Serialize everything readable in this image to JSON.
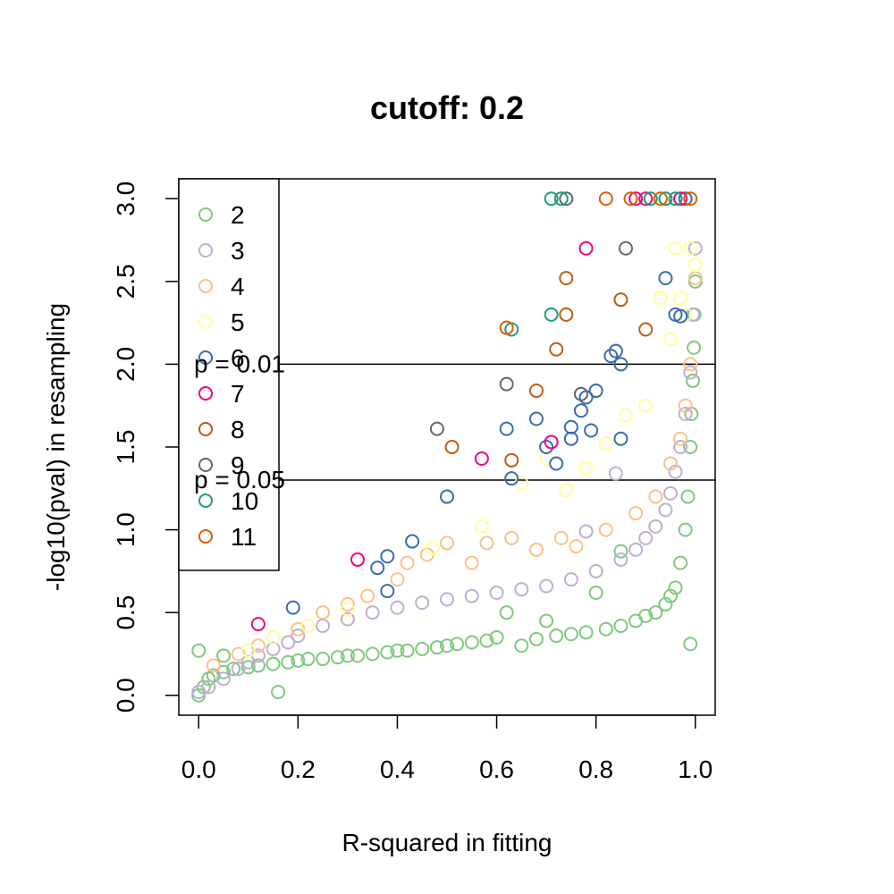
{
  "chart_data": {
    "type": "scatter",
    "title": "cutoff: 0.2",
    "xlabel": "R-squared in fitting",
    "ylabel": "-log10(pval) in resampling",
    "xlim": [
      -0.04,
      1.04
    ],
    "ylim": [
      -0.12,
      3.12
    ],
    "xticks": [
      "0.0",
      "0.2",
      "0.4",
      "0.6",
      "0.8",
      "1.0"
    ],
    "yticks": [
      "0.0",
      "0.5",
      "1.0",
      "1.5",
      "2.0",
      "2.5",
      "3.0"
    ],
    "legend_position": "top-left",
    "reference_lines": [
      {
        "y": 2.0,
        "label": "p = 0.01"
      },
      {
        "y": 1.3,
        "label": "p = 0.05"
      }
    ],
    "series": [
      {
        "name": "2",
        "color": "#7fc97f",
        "points": [
          [
            0.0,
            0.0
          ],
          [
            0.01,
            0.05
          ],
          [
            0.02,
            0.1
          ],
          [
            0.03,
            0.12
          ],
          [
            0.05,
            0.14
          ],
          [
            0.07,
            0.16
          ],
          [
            0.1,
            0.17
          ],
          [
            0.12,
            0.18
          ],
          [
            0.15,
            0.19
          ],
          [
            0.16,
            0.02
          ],
          [
            0.18,
            0.2
          ],
          [
            0.2,
            0.21
          ],
          [
            0.22,
            0.22
          ],
          [
            0.25,
            0.22
          ],
          [
            0.28,
            0.23
          ],
          [
            0.3,
            0.24
          ],
          [
            0.32,
            0.24
          ],
          [
            0.35,
            0.25
          ],
          [
            0.38,
            0.26
          ],
          [
            0.4,
            0.27
          ],
          [
            0.42,
            0.27
          ],
          [
            0.45,
            0.28
          ],
          [
            0.48,
            0.29
          ],
          [
            0.5,
            0.3
          ],
          [
            0.52,
            0.31
          ],
          [
            0.55,
            0.32
          ],
          [
            0.58,
            0.33
          ],
          [
            0.6,
            0.35
          ],
          [
            0.62,
            0.5
          ],
          [
            0.65,
            0.3
          ],
          [
            0.68,
            0.34
          ],
          [
            0.7,
            0.45
          ],
          [
            0.72,
            0.36
          ],
          [
            0.75,
            0.37
          ],
          [
            0.78,
            0.38
          ],
          [
            0.8,
            0.62
          ],
          [
            0.82,
            0.4
          ],
          [
            0.85,
            0.42
          ],
          [
            0.88,
            0.45
          ],
          [
            0.9,
            0.48
          ],
          [
            0.92,
            0.5
          ],
          [
            0.94,
            0.55
          ],
          [
            0.95,
            0.6
          ],
          [
            0.96,
            0.65
          ],
          [
            0.97,
            0.8
          ],
          [
            0.98,
            1.0
          ],
          [
            0.985,
            1.2
          ],
          [
            0.99,
            1.5
          ],
          [
            0.992,
            1.7
          ],
          [
            0.995,
            1.9
          ],
          [
            0.997,
            2.1
          ],
          [
            0.998,
            2.3
          ],
          [
            1.0,
            2.5
          ],
          [
            0.99,
            0.31
          ],
          [
            0.0,
            0.27
          ],
          [
            0.05,
            0.24
          ],
          [
            0.85,
            0.87
          ]
        ]
      },
      {
        "name": "3",
        "color": "#beaed4",
        "points": [
          [
            0.0,
            0.02
          ],
          [
            0.02,
            0.05
          ],
          [
            0.05,
            0.1
          ],
          [
            0.08,
            0.16
          ],
          [
            0.1,
            0.2
          ],
          [
            0.12,
            0.24
          ],
          [
            0.15,
            0.28
          ],
          [
            0.18,
            0.32
          ],
          [
            0.2,
            0.36
          ],
          [
            0.25,
            0.42
          ],
          [
            0.3,
            0.46
          ],
          [
            0.35,
            0.5
          ],
          [
            0.4,
            0.53
          ],
          [
            0.45,
            0.56
          ],
          [
            0.5,
            0.58
          ],
          [
            0.55,
            0.6
          ],
          [
            0.6,
            0.62
          ],
          [
            0.65,
            0.64
          ],
          [
            0.7,
            0.66
          ],
          [
            0.75,
            0.7
          ],
          [
            0.8,
            0.75
          ],
          [
            0.85,
            0.82
          ],
          [
            0.88,
            0.88
          ],
          [
            0.9,
            0.95
          ],
          [
            0.92,
            1.02
          ],
          [
            0.94,
            1.12
          ],
          [
            0.95,
            1.22
          ],
          [
            0.96,
            1.35
          ],
          [
            0.97,
            1.5
          ],
          [
            0.98,
            1.7
          ],
          [
            0.99,
            1.95
          ],
          [
            0.995,
            2.3
          ],
          [
            1.0,
            2.7
          ],
          [
            0.84,
            1.34
          ],
          [
            0.78,
            0.99
          ]
        ]
      },
      {
        "name": "4",
        "color": "#fdc086",
        "points": [
          [
            0.03,
            0.18
          ],
          [
            0.08,
            0.25
          ],
          [
            0.12,
            0.3
          ],
          [
            0.2,
            0.4
          ],
          [
            0.25,
            0.5
          ],
          [
            0.3,
            0.55
          ],
          [
            0.34,
            0.6
          ],
          [
            0.4,
            0.7
          ],
          [
            0.42,
            0.8
          ],
          [
            0.46,
            0.85
          ],
          [
            0.5,
            0.92
          ],
          [
            0.55,
            0.8
          ],
          [
            0.58,
            0.92
          ],
          [
            0.63,
            0.95
          ],
          [
            0.68,
            0.88
          ],
          [
            0.73,
            0.95
          ],
          [
            0.76,
            0.9
          ],
          [
            0.82,
            1.0
          ],
          [
            0.88,
            1.1
          ],
          [
            0.92,
            1.2
          ],
          [
            0.95,
            1.4
          ],
          [
            0.97,
            1.55
          ],
          [
            0.98,
            1.75
          ],
          [
            1.0,
            2.52
          ],
          [
            0.99,
            2.0
          ]
        ]
      },
      {
        "name": "5",
        "color": "#ffff99",
        "points": [
          [
            0.1,
            0.27
          ],
          [
            0.15,
            0.35
          ],
          [
            0.22,
            0.42
          ],
          [
            0.3,
            0.52
          ],
          [
            0.47,
            0.89
          ],
          [
            0.57,
            1.02
          ],
          [
            0.65,
            1.28
          ],
          [
            0.7,
            1.43
          ],
          [
            0.74,
            1.24
          ],
          [
            0.78,
            1.37
          ],
          [
            0.82,
            1.52
          ],
          [
            0.86,
            1.69
          ],
          [
            0.9,
            1.75
          ],
          [
            0.93,
            2.4
          ],
          [
            0.96,
            2.7
          ],
          [
            0.97,
            2.4
          ],
          [
            0.98,
            2.3
          ],
          [
            0.99,
            2.7
          ],
          [
            1.0,
            2.6
          ],
          [
            0.95,
            2.15
          ]
        ]
      },
      {
        "name": "6",
        "color": "#386cb0",
        "points": [
          [
            0.19,
            0.53
          ],
          [
            0.36,
            0.77
          ],
          [
            0.38,
            0.84
          ],
          [
            0.38,
            0.63
          ],
          [
            0.43,
            0.93
          ],
          [
            0.5,
            1.2
          ],
          [
            0.62,
            1.61
          ],
          [
            0.63,
            1.31
          ],
          [
            0.68,
            1.67
          ],
          [
            0.7,
            1.5
          ],
          [
            0.72,
            1.4
          ],
          [
            0.75,
            1.55
          ],
          [
            0.75,
            1.62
          ],
          [
            0.77,
            1.72
          ],
          [
            0.78,
            1.8
          ],
          [
            0.79,
            1.6
          ],
          [
            0.8,
            1.84
          ],
          [
            0.84,
            2.08
          ],
          [
            0.85,
            1.55
          ],
          [
            0.83,
            2.05
          ],
          [
            0.85,
            2.0
          ],
          [
            0.94,
            2.52
          ],
          [
            0.96,
            2.3
          ],
          [
            0.97,
            2.29
          ],
          [
            0.98,
            3.0
          ]
        ]
      },
      {
        "name": "7",
        "color": "#f0027f",
        "points": [
          [
            0.12,
            0.43
          ],
          [
            0.32,
            0.82
          ],
          [
            0.57,
            1.43
          ],
          [
            0.71,
            1.53
          ],
          [
            0.78,
            2.7
          ],
          [
            0.88,
            3.0
          ],
          [
            0.9,
            3.0
          ],
          [
            0.97,
            3.0
          ]
        ]
      },
      {
        "name": "8",
        "color": "#bf5b17",
        "points": [
          [
            0.51,
            1.5
          ],
          [
            0.63,
            1.42
          ],
          [
            0.68,
            1.84
          ],
          [
            0.72,
            2.09
          ],
          [
            0.74,
            2.3
          ],
          [
            0.74,
            2.52
          ],
          [
            0.85,
            2.39
          ],
          [
            0.9,
            2.21
          ]
        ]
      },
      {
        "name": "9",
        "color": "#666666",
        "points": [
          [
            0.48,
            1.61
          ],
          [
            0.62,
            1.88
          ],
          [
            0.77,
            1.82
          ],
          [
            0.86,
            2.7
          ],
          [
            0.74,
            3.0
          ]
        ]
      },
      {
        "name": "10",
        "color": "#1b9e77",
        "points": [
          [
            0.63,
            2.21
          ],
          [
            0.71,
            2.3
          ],
          [
            0.71,
            3.0
          ],
          [
            0.73,
            3.0
          ],
          [
            0.91,
            3.0
          ],
          [
            0.94,
            3.0
          ],
          [
            0.96,
            3.0
          ]
        ]
      },
      {
        "name": "11",
        "color": "#d95f02",
        "points": [
          [
            0.62,
            2.22
          ],
          [
            0.82,
            3.0
          ],
          [
            0.87,
            3.0
          ],
          [
            0.93,
            3.0
          ],
          [
            0.99,
            3.0
          ]
        ]
      }
    ]
  }
}
